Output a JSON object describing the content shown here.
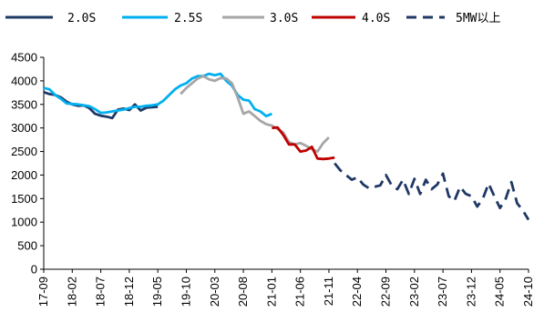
{
  "chart_data": {
    "type": "line",
    "title": "",
    "xlabel": "",
    "ylabel": "",
    "ylim": [
      0,
      4500
    ],
    "yticks": [
      0,
      500,
      1000,
      1500,
      2000,
      2500,
      3000,
      3500,
      4000,
      4500
    ],
    "x_tick_labels": [
      "17-09",
      "18-02",
      "18-07",
      "18-12",
      "19-05",
      "19-10",
      "20-03",
      "20-08",
      "21-01",
      "21-06",
      "21-11",
      "22-04",
      "22-09",
      "23-02",
      "23-07",
      "23-12",
      "24-05",
      "24-10"
    ],
    "x_range_months": [
      "2017-09",
      "2024-10"
    ],
    "grid": false,
    "legend_position": "top",
    "series": [
      {
        "name": "2.0S",
        "color": "#1f3864",
        "dash": "solid",
        "points": [
          [
            "2017-09",
            3760
          ],
          [
            "2017-10",
            3720
          ],
          [
            "2017-11",
            3700
          ],
          [
            "2017-12",
            3650
          ],
          [
            "2018-01",
            3560
          ],
          [
            "2018-02",
            3500
          ],
          [
            "2018-03",
            3470
          ],
          [
            "2018-04",
            3480
          ],
          [
            "2018-05",
            3420
          ],
          [
            "2018-06",
            3300
          ],
          [
            "2018-07",
            3260
          ],
          [
            "2018-08",
            3240
          ],
          [
            "2018-09",
            3210
          ],
          [
            "2018-10",
            3390
          ],
          [
            "2018-11",
            3410
          ],
          [
            "2018-12",
            3380
          ],
          [
            "2019-01",
            3500
          ],
          [
            "2019-02",
            3370
          ],
          [
            "2019-03",
            3430
          ],
          [
            "2019-04",
            3440
          ],
          [
            "2019-05",
            3450
          ]
        ]
      },
      {
        "name": "2.5S",
        "color": "#00b0f0",
        "dash": "solid",
        "points": [
          [
            "2017-09",
            3850
          ],
          [
            "2017-10",
            3820
          ],
          [
            "2017-11",
            3700
          ],
          [
            "2017-12",
            3620
          ],
          [
            "2018-01",
            3520
          ],
          [
            "2018-02",
            3510
          ],
          [
            "2018-03",
            3500
          ],
          [
            "2018-04",
            3480
          ],
          [
            "2018-05",
            3460
          ],
          [
            "2018-06",
            3400
          ],
          [
            "2018-07",
            3320
          ],
          [
            "2018-08",
            3330
          ],
          [
            "2018-09",
            3350
          ],
          [
            "2018-10",
            3370
          ],
          [
            "2018-11",
            3390
          ],
          [
            "2018-12",
            3420
          ],
          [
            "2019-01",
            3450
          ],
          [
            "2019-02",
            3450
          ],
          [
            "2019-03",
            3470
          ],
          [
            "2019-04",
            3480
          ],
          [
            "2019-05",
            3500
          ],
          [
            "2019-06",
            3580
          ],
          [
            "2019-07",
            3700
          ],
          [
            "2019-08",
            3820
          ],
          [
            "2019-09",
            3900
          ],
          [
            "2019-10",
            3950
          ],
          [
            "2019-11",
            4050
          ],
          [
            "2019-12",
            4100
          ],
          [
            "2020-01",
            4100
          ],
          [
            "2020-02",
            4150
          ],
          [
            "2020-03",
            4120
          ],
          [
            "2020-04",
            4150
          ],
          [
            "2020-05",
            4000
          ],
          [
            "2020-06",
            3900
          ],
          [
            "2020-07",
            3700
          ],
          [
            "2020-08",
            3600
          ],
          [
            "2020-09",
            3580
          ],
          [
            "2020-10",
            3400
          ],
          [
            "2020-11",
            3350
          ],
          [
            "2020-12",
            3250
          ],
          [
            "2021-01",
            3300
          ]
        ]
      },
      {
        "name": "3.0S",
        "color": "#a6a6a6",
        "dash": "solid",
        "points": [
          [
            "2019-09",
            3720
          ],
          [
            "2019-10",
            3850
          ],
          [
            "2019-11",
            3950
          ],
          [
            "2019-12",
            4050
          ],
          [
            "2020-01",
            4100
          ],
          [
            "2020-02",
            4030
          ],
          [
            "2020-03",
            4000
          ],
          [
            "2020-04",
            4060
          ],
          [
            "2020-05",
            4050
          ],
          [
            "2020-06",
            3950
          ],
          [
            "2020-07",
            3650
          ],
          [
            "2020-08",
            3300
          ],
          [
            "2020-09",
            3350
          ],
          [
            "2020-10",
            3250
          ],
          [
            "2020-11",
            3150
          ],
          [
            "2020-12",
            3080
          ],
          [
            "2021-01",
            3050
          ],
          [
            "2021-02",
            2980
          ],
          [
            "2021-03",
            2900
          ],
          [
            "2021-04",
            2700
          ],
          [
            "2021-05",
            2650
          ],
          [
            "2021-06",
            2680
          ],
          [
            "2021-07",
            2620
          ],
          [
            "2021-08",
            2550
          ],
          [
            "2021-09",
            2500
          ],
          [
            "2021-10",
            2680
          ],
          [
            "2021-11",
            2800
          ]
        ]
      },
      {
        "name": "4.0S",
        "color": "#c00000",
        "dash": "solid",
        "points": [
          [
            "2021-01",
            3000
          ],
          [
            "2021-02",
            3010
          ],
          [
            "2021-03",
            2850
          ],
          [
            "2021-04",
            2650
          ],
          [
            "2021-05",
            2650
          ],
          [
            "2021-06",
            2500
          ],
          [
            "2021-07",
            2520
          ],
          [
            "2021-08",
            2600
          ],
          [
            "2021-09",
            2350
          ],
          [
            "2021-10",
            2340
          ],
          [
            "2021-11",
            2350
          ],
          [
            "2021-12",
            2370
          ]
        ]
      },
      {
        "name": "5MW以上",
        "color": "#1f3864",
        "dash": "dashed",
        "points": [
          [
            "2021-12",
            2250
          ],
          [
            "2022-01",
            2100
          ],
          [
            "2022-02",
            2000
          ],
          [
            "2022-03",
            1900
          ],
          [
            "2022-04",
            1950
          ],
          [
            "2022-05",
            1800
          ],
          [
            "2022-06",
            1720
          ],
          [
            "2022-07",
            1750
          ],
          [
            "2022-08",
            1780
          ],
          [
            "2022-09",
            2000
          ],
          [
            "2022-10",
            1780
          ],
          [
            "2022-11",
            1700
          ],
          [
            "2022-12",
            1900
          ],
          [
            "2023-01",
            1600
          ],
          [
            "2023-02",
            1920
          ],
          [
            "2023-03",
            1600
          ],
          [
            "2023-04",
            1900
          ],
          [
            "2023-05",
            1700
          ],
          [
            "2023-06",
            1800
          ],
          [
            "2023-07",
            2030
          ],
          [
            "2023-08",
            1550
          ],
          [
            "2023-09",
            1450
          ],
          [
            "2023-10",
            1750
          ],
          [
            "2023-11",
            1600
          ],
          [
            "2023-12",
            1550
          ],
          [
            "2024-01",
            1330
          ],
          [
            "2024-02",
            1500
          ],
          [
            "2024-03",
            1820
          ],
          [
            "2024-04",
            1550
          ],
          [
            "2024-05",
            1300
          ],
          [
            "2024-06",
            1500
          ],
          [
            "2024-07",
            1850
          ],
          [
            "2024-08",
            1400
          ],
          [
            "2024-09",
            1250
          ],
          [
            "2024-10",
            1050
          ]
        ]
      }
    ]
  }
}
